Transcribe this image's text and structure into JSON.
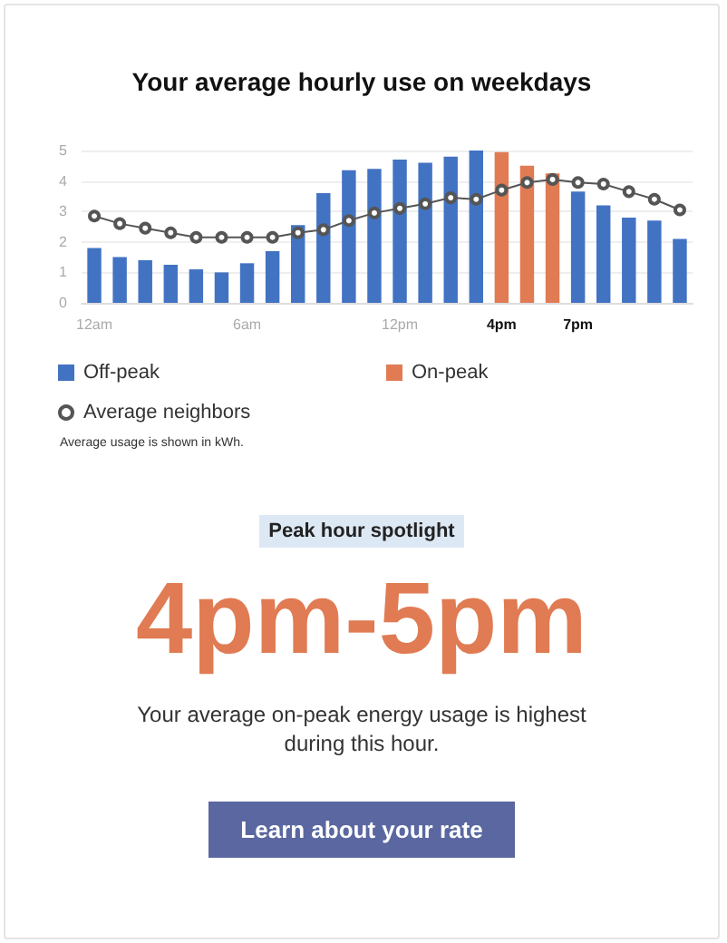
{
  "chart_data": {
    "type": "bar",
    "title": "Your average hourly use on weekdays",
    "categories": [
      "12am",
      null,
      null,
      null,
      null,
      null,
      "6am",
      null,
      null,
      null,
      null,
      null,
      "12pm",
      null,
      null,
      null,
      "4pm",
      null,
      null,
      "7pm",
      null,
      null,
      null,
      null
    ],
    "series": [
      {
        "name": "Off-peak",
        "color": "#4273c3",
        "values": [
          1.8,
          1.5,
          1.4,
          1.25,
          1.1,
          1.0,
          1.3,
          1.7,
          2.55,
          3.6,
          4.35,
          4.4,
          4.7,
          4.6,
          4.8,
          5.0,
          null,
          null,
          null,
          3.65,
          3.2,
          2.8,
          2.7,
          2.1
        ]
      },
      {
        "name": "On-peak",
        "color": "#e07b53",
        "values": [
          null,
          null,
          null,
          null,
          null,
          null,
          null,
          null,
          null,
          null,
          null,
          null,
          null,
          null,
          null,
          null,
          4.95,
          4.5,
          4.25,
          null,
          null,
          null,
          null,
          null
        ]
      },
      {
        "name": "Average neighbors",
        "type": "line",
        "color": "#555555",
        "marker": "circle",
        "values": [
          2.85,
          2.6,
          2.45,
          2.3,
          2.15,
          2.15,
          2.15,
          2.15,
          2.3,
          2.4,
          2.7,
          2.95,
          3.1,
          3.25,
          3.45,
          3.4,
          3.7,
          3.95,
          4.05,
          3.95,
          3.9,
          3.65,
          3.4,
          3.05
        ]
      }
    ],
    "ylim": [
      0,
      5
    ],
    "yticks": [
      0,
      1,
      2,
      3,
      4,
      5
    ],
    "grid": "y",
    "legend": "bottom",
    "annotations": [
      "Average usage is shown in kWh.",
      "Peak hour spotlight",
      "4pm-5pm",
      "Your average on-peak energy usage is highest during this hour.",
      "Learn about your rate"
    ]
  }
}
